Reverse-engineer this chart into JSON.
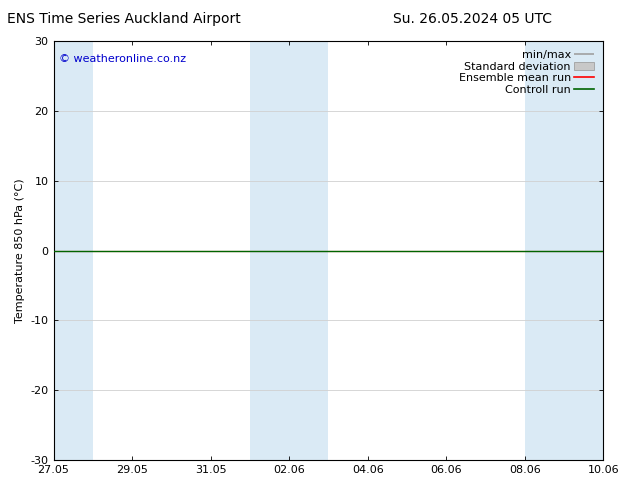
{
  "title_left": "ENS Time Series Auckland Airport",
  "title_right": "Su. 26.05.2024 05 UTC",
  "ylabel": "Temperature 850 hPa (°C)",
  "ylim": [
    -30,
    30
  ],
  "yticks": [
    -30,
    -20,
    -10,
    0,
    10,
    20,
    30
  ],
  "watermark": "© weatheronline.co.nz",
  "background_color": "#ffffff",
  "plot_bg_color": "#ffffff",
  "shaded_band_color": "#daeaf5",
  "legend_labels": [
    "min/max",
    "Standard deviation",
    "Ensemble mean run",
    "Controll run"
  ],
  "legend_line_colors": [
    "#a0a0a0",
    "#c0c0c0",
    "#ff0000",
    "#006400"
  ],
  "xtick_labels": [
    "27.05",
    "29.05",
    "31.05",
    "02.06",
    "04.06",
    "06.06",
    "08.06",
    "10.06"
  ],
  "xtick_positions": [
    0,
    2,
    4,
    6,
    8,
    10,
    12,
    14
  ],
  "shaded_bands": [
    [
      0,
      1
    ],
    [
      5,
      6
    ],
    [
      6,
      7
    ],
    [
      12,
      13
    ],
    [
      13,
      14
    ]
  ],
  "control_run_y": 0.0,
  "ensemble_mean_y": 0.0,
  "n_days": 14,
  "font_size_title": 10,
  "font_size_axis": 8,
  "font_size_legend": 8,
  "font_size_ticks": 8,
  "font_size_watermark": 8,
  "watermark_color": "#0000cc"
}
